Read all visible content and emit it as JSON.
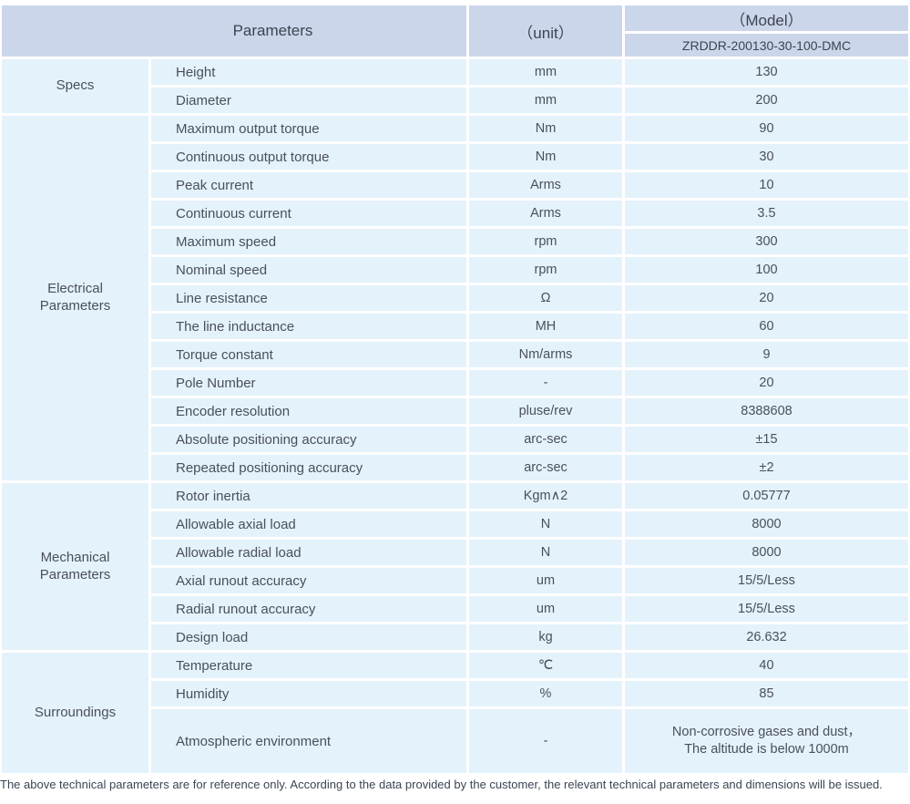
{
  "table": {
    "header": {
      "parameters_label": "Parameters",
      "unit_label": "（unit）",
      "model_label": "（Model）",
      "model_value": "ZRDDR-200130-30-100-DMC"
    },
    "sections": [
      {
        "label": "Specs",
        "rows": [
          {
            "name": "Height",
            "unit": "mm",
            "value": "130"
          },
          {
            "name": "Diameter",
            "unit": "mm",
            "value": "200"
          }
        ]
      },
      {
        "label": "Electrical\nParameters",
        "rows": [
          {
            "name": "Maximum output torque",
            "unit": "Nm",
            "value": "90"
          },
          {
            "name": "Continuous output torque",
            "unit": "Nm",
            "value": "30"
          },
          {
            "name": "Peak current",
            "unit": "Arms",
            "value": "10"
          },
          {
            "name": "Continuous current",
            "unit": "Arms",
            "value": "3.5"
          },
          {
            "name": "Maximum speed",
            "unit": "rpm",
            "value": "300"
          },
          {
            "name": "Nominal speed",
            "unit": "rpm",
            "value": "100"
          },
          {
            "name": "Line resistance",
            "unit": "Ω",
            "value": "20"
          },
          {
            "name": "The line inductance",
            "unit": "MH",
            "value": "60"
          },
          {
            "name": "Torque constant",
            "unit": "Nm/arms",
            "value": "9"
          },
          {
            "name": "Pole Number",
            "unit": "-",
            "value": "20"
          },
          {
            "name": "Encoder resolution",
            "unit": "pluse/rev",
            "value": "8388608"
          },
          {
            "name": "Absolute positioning accuracy",
            "unit": "arc-sec",
            "value": "±15"
          },
          {
            "name": "Repeated positioning accuracy",
            "unit": "arc-sec",
            "value": "±2"
          }
        ]
      },
      {
        "label": "Mechanical\nParameters",
        "rows": [
          {
            "name": "Rotor inertia",
            "unit": "Kgm∧2",
            "value": "0.05777"
          },
          {
            "name": "Allowable axial load",
            "unit": "N",
            "value": "8000"
          },
          {
            "name": "Allowable radial load",
            "unit": "N",
            "value": "8000"
          },
          {
            "name": "Axial runout accuracy",
            "unit": "um",
            "value": "15/5/Less"
          },
          {
            "name": "Radial runout accuracy",
            "unit": "um",
            "value": "15/5/Less"
          },
          {
            "name": "Design load",
            "unit": "kg",
            "value": "26.632"
          }
        ]
      },
      {
        "label": "Surroundings",
        "rows": [
          {
            "name": "Temperature",
            "unit": "℃",
            "value": "40"
          },
          {
            "name": "Humidity",
            "unit": "%",
            "value": "85"
          },
          {
            "name": "Atmospheric environment",
            "unit": "-",
            "value": "Non-corrosive gases and dust，\nThe altitude is below 1000m",
            "tall": true
          }
        ]
      }
    ]
  },
  "footer": {
    "note": "The above technical parameters are for reference only. According to the data provided by the customer, the relevant technical parameters and dimensions will be issued."
  },
  "colors": {
    "header_bg": "#cbd6eb",
    "row_bg": "#e4f2fb",
    "header_text": "#3d4450",
    "body_text": "#4a505a"
  }
}
